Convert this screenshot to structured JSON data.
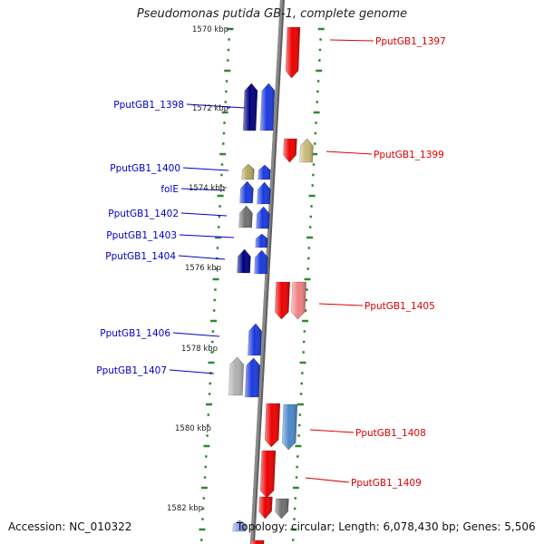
{
  "title": "Pseudomonas putida GB-1, complete genome",
  "footer": {
    "accession": "Accession: NC_010322",
    "topology": "Topology: circular; Length: 6,078,430 bp; Genes: 5,506"
  },
  "colors": {
    "backbone": "#8a8a8a",
    "tick": "#2f8a2f",
    "left_label": "#0000cc",
    "right_label": "#dd0000",
    "scale_text": "#222222"
  },
  "scale_labels": [
    "1570 kbp",
    "1572 kbp",
    "1574 kbp",
    "1576 kbp",
    "1578 kbp",
    "1580 kbp",
    "1582 kbp"
  ],
  "gene_labels": {
    "left": [
      "PputGB1_1398",
      "PputGB1_1400",
      "folE",
      "PputGB1_1402",
      "PputGB1_1403",
      "PputGB1_1404",
      "PputGB1_1406",
      "PputGB1_1407"
    ],
    "right": [
      "PputGB1_1397",
      "PputGB1_1399",
      "PputGB1_1405",
      "PputGB1_1408",
      "PputGB1_1409"
    ]
  },
  "genes": [
    {
      "color": "#ee0000",
      "direction": "down"
    },
    {
      "color": "#000080",
      "direction": "up"
    },
    {
      "color": "#1a3adf",
      "direction": "up"
    },
    {
      "color": "#ee0000",
      "direction": "down"
    },
    {
      "color": "#c8bb78",
      "direction": "up"
    },
    {
      "color": "#b4a662",
      "direction": "up"
    },
    {
      "color": "#1a3adf",
      "direction": "up"
    },
    {
      "color": "#1a3adf",
      "direction": "up"
    },
    {
      "color": "#1a3adf",
      "direction": "up"
    },
    {
      "color": "#707070",
      "direction": "up"
    },
    {
      "color": "#1a3adf",
      "direction": "up"
    },
    {
      "color": "#1a3adf",
      "direction": "up"
    },
    {
      "color": "#000080",
      "direction": "up"
    },
    {
      "color": "#1a3adf",
      "direction": "up"
    },
    {
      "color": "#ee0000",
      "direction": "down"
    },
    {
      "color": "#f08080",
      "direction": "down"
    },
    {
      "color": "#1a3adf",
      "direction": "up"
    },
    {
      "color": "#b0b0b0",
      "direction": "up"
    },
    {
      "color": "#1a3adf",
      "direction": "up"
    },
    {
      "color": "#ee0000",
      "direction": "down"
    },
    {
      "color": "#4a88c8",
      "direction": "down"
    },
    {
      "color": "#ee0000",
      "direction": "down"
    },
    {
      "color": "#ee0000",
      "direction": "down"
    },
    {
      "color": "#707070",
      "direction": "down"
    },
    {
      "color": "#8f9fe8",
      "direction": "up"
    },
    {
      "color": "#ee0000",
      "direction": "down"
    }
  ]
}
